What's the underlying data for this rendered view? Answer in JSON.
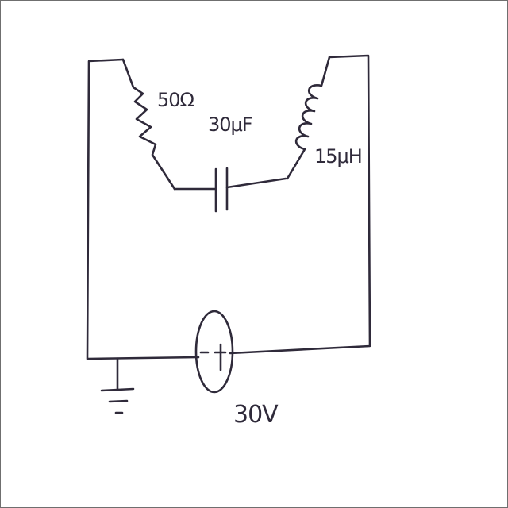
{
  "diagram": {
    "type": "circuit-schematic",
    "components": {
      "resistor": {
        "label": "50Ω"
      },
      "capacitor": {
        "label": "30μF"
      },
      "inductor": {
        "label": "15μH"
      },
      "source": {
        "label": "30V",
        "terminals": "- +"
      }
    },
    "colors": {
      "ink": "#2f2a3a",
      "paper": "#ffffff",
      "frame": "#6f6f6f"
    }
  }
}
